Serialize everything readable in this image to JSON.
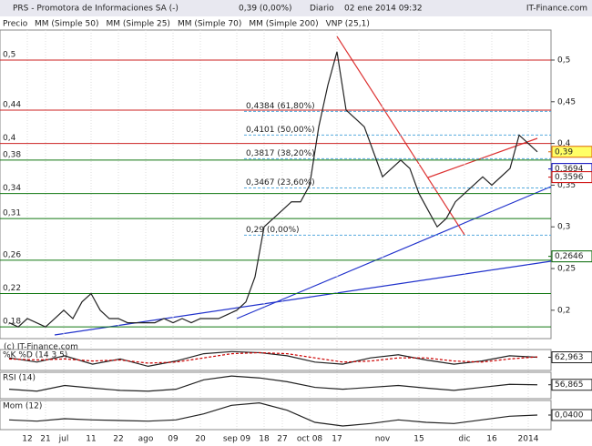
{
  "header": {
    "title": "PRS - Promotora de Informaciones SA (-)",
    "quote": "0,39 (0,00%)",
    "period": "Diario",
    "date": "02 ene 2014 09:32",
    "brand": "IT-Finance.com"
  },
  "chart_data": [
    {
      "type": "line",
      "watermark": "(c) IT-Finance.com",
      "categories": [
        null,
        null,
        "12",
        null,
        "21",
        null,
        "jul",
        null,
        null,
        "11",
        null,
        null,
        "22",
        null,
        null,
        "ago",
        null,
        null,
        "09",
        null,
        null,
        "20",
        null,
        null,
        null,
        "sep 09",
        null,
        null,
        "18",
        null,
        "27",
        null,
        null,
        "oct 08",
        null,
        null,
        "17",
        null,
        null,
        null,
        null,
        "nov",
        null,
        null,
        null,
        "15",
        null,
        null,
        null,
        null,
        "dic",
        null,
        null,
        "16",
        null,
        null,
        null,
        "2014",
        null
      ],
      "series": [
        {
          "name": "Precio",
          "color": "#222222",
          "values": [
            0.185,
            0.18,
            0.19,
            0.185,
            0.18,
            0.19,
            0.2,
            0.19,
            0.21,
            0.22,
            0.2,
            0.19,
            0.19,
            0.185,
            0.185,
            0.185,
            0.185,
            0.19,
            0.185,
            0.19,
            0.185,
            0.19,
            0.19,
            0.19,
            0.195,
            0.2,
            0.21,
            0.24,
            0.3,
            0.31,
            0.32,
            0.33,
            0.33,
            0.35,
            0.42,
            0.47,
            0.51,
            0.44,
            0.43,
            0.42,
            0.39,
            0.36,
            0.37,
            0.38,
            0.37,
            0.34,
            0.32,
            0.3,
            0.31,
            0.33,
            0.34,
            0.35,
            0.36,
            0.35,
            0.36,
            0.37,
            0.41,
            0.4,
            0.39
          ]
        }
      ],
      "overlays": [
        {
          "name": "MM (Simple 50)",
          "color": "#777777"
        },
        {
          "name": "MM (Simple 25)",
          "color": "#cc0000"
        },
        {
          "name": "MM (Simple 70)",
          "color": "#0000bb"
        },
        {
          "name": "MM (Simple 200)",
          "color": "#008800"
        },
        {
          "name": "VNP (25,1)",
          "color": "#9999dd"
        }
      ],
      "ylim": [
        0.166,
        0.536
      ],
      "yticks": [
        {
          "value": 0.2,
          "label": "0,2"
        },
        {
          "value": 0.25,
          "label": "0,25"
        },
        {
          "value": 0.3,
          "label": "0,3"
        },
        {
          "value": 0.35,
          "label": "0,35"
        },
        {
          "value": 0.4,
          "label": "0,4"
        },
        {
          "value": 0.45,
          "label": "0,45"
        },
        {
          "value": 0.5,
          "label": "0,5"
        }
      ],
      "levels": [
        {
          "value": 0.5,
          "label": "0,5",
          "color": "#cc2222"
        },
        {
          "value": 0.44,
          "label": "0,44",
          "color": "#cc2222"
        },
        {
          "value": 0.4,
          "label": "0,4",
          "color": "#cc2222"
        },
        {
          "value": 0.38,
          "label": "0,38",
          "color": "#117711"
        },
        {
          "value": 0.34,
          "label": "0,34",
          "color": "#117711"
        },
        {
          "value": 0.31,
          "label": "0,31",
          "color": "#117711"
        },
        {
          "value": 0.26,
          "label": "0,26",
          "color": "#117711"
        },
        {
          "value": 0.22,
          "label": "0,22",
          "color": "#117711"
        },
        {
          "value": 0.18,
          "label": "0,18",
          "color": "#117711"
        }
      ],
      "fib": [
        {
          "value": 0.4384,
          "label": "0,4384 (61,80%)"
        },
        {
          "value": 0.4101,
          "label": "0,4101 (50,00%)"
        },
        {
          "value": 0.3817,
          "label": "0,3817 (38,20%)"
        },
        {
          "value": 0.3467,
          "label": "0,3467 (23,60%)"
        },
        {
          "value": 0.29,
          "label": "0,29 (0,00%)"
        }
      ],
      "markers": [
        {
          "value": 0.39,
          "label": "0,39",
          "color": "#dd6600",
          "fill": "#ffff66"
        },
        {
          "value": 0.3694,
          "label": "0,3694",
          "color": "#0000bb",
          "fill": "#ffffff"
        },
        {
          "value": 0.3596,
          "label": "0,3596",
          "color": "#cc0000",
          "fill": "#ffffff"
        },
        {
          "value": 0.2646,
          "label": "0,2646",
          "color": "#006600",
          "fill": "#ffffff"
        }
      ]
    },
    {
      "type": "line",
      "title": "%K %D (14 3 5)",
      "ylim": [
        0,
        100
      ],
      "series": [
        {
          "name": "%K",
          "color": "#222222",
          "values": [
            60,
            40,
            70,
            30,
            55,
            20,
            45,
            80,
            90,
            85,
            70,
            40,
            30,
            60,
            75,
            50,
            30,
            45,
            70,
            62.963
          ]
        },
        {
          "name": "%D",
          "color": "#cc0000",
          "values": [
            55,
            50,
            55,
            45,
            50,
            35,
            40,
            60,
            80,
            85,
            80,
            60,
            40,
            45,
            60,
            60,
            45,
            40,
            55,
            65
          ]
        }
      ],
      "current": {
        "value": 62.963,
        "label": "62,963"
      }
    },
    {
      "type": "line",
      "title": "RSI (14)",
      "ylim": [
        20,
        90
      ],
      "series": [
        {
          "name": "RSI",
          "color": "#222222",
          "values": [
            45,
            40,
            55,
            48,
            42,
            40,
            45,
            70,
            80,
            75,
            65,
            50,
            45,
            50,
            55,
            48,
            42,
            50,
            58,
            56.865
          ]
        }
      ],
      "current": {
        "value": 56.865,
        "label": "56,865"
      }
    },
    {
      "type": "line",
      "title": "Mom (12)",
      "ylim": [
        -0.08,
        0.16
      ],
      "series": [
        {
          "name": "Mom",
          "color": "#222222",
          "values": [
            0,
            -0.01,
            0.01,
            0,
            -0.005,
            -0.01,
            0,
            0.05,
            0.12,
            0.14,
            0.08,
            -0.02,
            -0.05,
            -0.03,
            0,
            -0.02,
            -0.03,
            0,
            0.03,
            0.04
          ]
        }
      ],
      "current": {
        "value": 0.04,
        "label": "0,0400"
      }
    }
  ]
}
